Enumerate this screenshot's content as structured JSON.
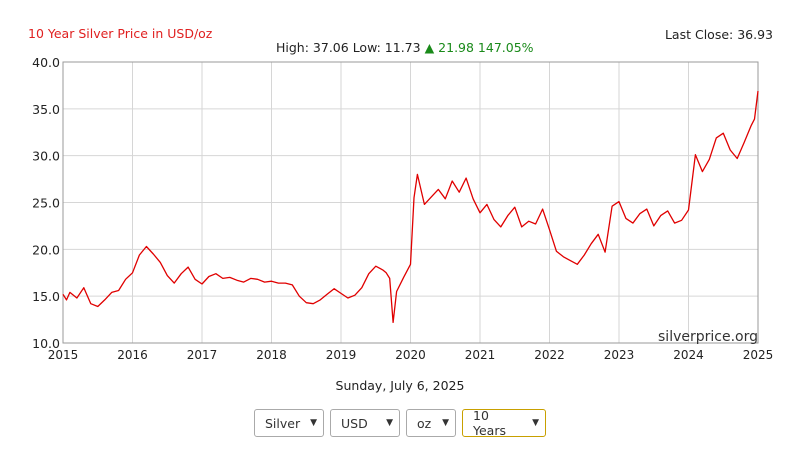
{
  "header": {
    "title": "10 Year Silver Price in USD/oz",
    "last_close_label": "Last Close: 36.93",
    "high_label": "High: 37.06",
    "low_label": "Low: 11.73",
    "change_text": "▲ 21.98 147.05%"
  },
  "watermark": "silverprice.org",
  "date_text": "Sunday, July 6, 2025",
  "controls": {
    "metal": "Silver",
    "currency": "USD",
    "unit": "oz",
    "range": "10 Years"
  },
  "colors": {
    "line": "#e00000",
    "grid": "#d6d6d6",
    "title": "#e02020",
    "up": "#1a8a1a"
  },
  "chart_data": {
    "type": "line",
    "title": "10 Year Silver Price in USD/oz",
    "xlabel": "",
    "ylabel": "",
    "xlim": [
      2015,
      2025
    ],
    "ylim": [
      10,
      40
    ],
    "x_ticks": [
      "2015",
      "2016",
      "2017",
      "2018",
      "2019",
      "2020",
      "2021",
      "2022",
      "2023",
      "2024",
      "2025"
    ],
    "y_ticks": [
      "10.0",
      "15.0",
      "20.0",
      "25.0",
      "30.0",
      "35.0",
      "40.0"
    ],
    "grid": true,
    "series": [
      {
        "name": "",
        "x": [
          2015.0,
          2015.05,
          2015.1,
          2015.2,
          2015.3,
          2015.4,
          2015.5,
          2015.6,
          2015.7,
          2015.8,
          2015.9,
          2016.0,
          2016.1,
          2016.2,
          2016.3,
          2016.4,
          2016.5,
          2016.6,
          2016.7,
          2016.8,
          2016.9,
          2017.0,
          2017.1,
          2017.2,
          2017.3,
          2017.4,
          2017.5,
          2017.6,
          2017.7,
          2017.8,
          2017.9,
          2018.0,
          2018.1,
          2018.2,
          2018.3,
          2018.4,
          2018.5,
          2018.6,
          2018.7,
          2018.8,
          2018.9,
          2019.0,
          2019.1,
          2019.2,
          2019.3,
          2019.4,
          2019.5,
          2019.6,
          2019.65,
          2019.7,
          2019.75,
          2019.8,
          2019.9,
          2020.0,
          2020.05,
          2020.1,
          2020.2,
          2020.3,
          2020.4,
          2020.5,
          2020.6,
          2020.7,
          2020.8,
          2020.9,
          2021.0,
          2021.1,
          2021.2,
          2021.3,
          2021.4,
          2021.5,
          2021.6,
          2021.7,
          2021.8,
          2021.9,
          2022.0,
          2022.1,
          2022.2,
          2022.3,
          2022.4,
          2022.5,
          2022.6,
          2022.7,
          2022.8,
          2022.9,
          2023.0,
          2023.1,
          2023.2,
          2023.3,
          2023.4,
          2023.5,
          2023.6,
          2023.7,
          2023.8,
          2023.9,
          2024.0,
          2024.1,
          2024.2,
          2024.3,
          2024.4,
          2024.5,
          2024.6,
          2024.7,
          2024.8,
          2024.9,
          2024.95,
          2025.0
        ],
        "y": [
          15.2,
          14.6,
          15.4,
          14.8,
          15.9,
          14.2,
          13.9,
          14.6,
          15.4,
          15.6,
          16.8,
          17.5,
          19.4,
          20.3,
          19.5,
          18.6,
          17.2,
          16.4,
          17.4,
          18.1,
          16.8,
          16.3,
          17.1,
          17.4,
          16.9,
          17.0,
          16.7,
          16.5,
          16.9,
          16.8,
          16.5,
          16.6,
          16.4,
          16.4,
          16.2,
          15.0,
          14.3,
          14.2,
          14.6,
          15.2,
          15.8,
          15.3,
          14.8,
          15.1,
          15.9,
          17.4,
          18.2,
          17.8,
          17.5,
          16.9,
          12.2,
          15.5,
          17.0,
          18.4,
          25.5,
          28.0,
          24.8,
          25.6,
          26.4,
          25.4,
          27.3,
          26.1,
          27.6,
          25.4,
          23.9,
          24.8,
          23.2,
          22.4,
          23.6,
          24.5,
          22.4,
          23.0,
          22.7,
          24.3,
          22.1,
          19.8,
          19.2,
          18.8,
          18.4,
          19.4,
          20.6,
          21.6,
          19.7,
          24.6,
          25.1,
          23.3,
          22.8,
          23.8,
          24.3,
          22.5,
          23.6,
          24.1,
          22.8,
          23.1,
          24.2,
          30.1,
          28.3,
          29.6,
          31.9,
          32.4,
          30.6,
          29.7,
          31.4,
          33.2,
          33.9,
          36.9
        ]
      }
    ]
  }
}
